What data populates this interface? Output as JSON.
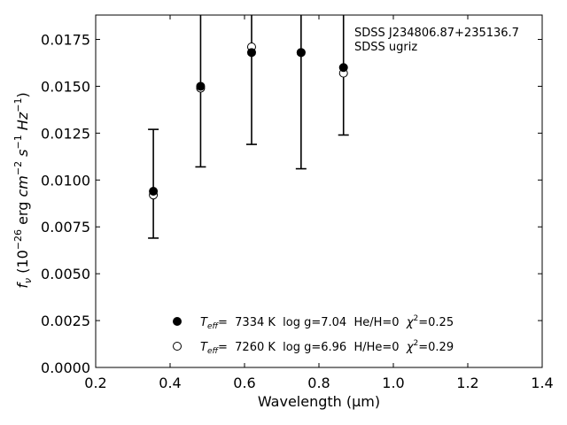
{
  "chart_data": {
    "type": "scatter",
    "xlabel": "Wavelength (μm)",
    "ylabel_parts": {
      "pre": "f",
      "sub": "ν",
      "mid": " (10",
      "exp1": "−26",
      "mid2": " erg ",
      "cm": "cm",
      "exp2": "−2",
      "s": " s",
      "exp3": "−1",
      "hz": " Hz",
      "exp4": "−1",
      "post": ")"
    },
    "xlim": [
      0.2,
      1.4
    ],
    "ylim": [
      0.0,
      0.0188
    ],
    "xticks": [
      0.2,
      0.4,
      0.6,
      0.8,
      1.0,
      1.2,
      1.4
    ],
    "xtick_labels": [
      "0.2",
      "0.4",
      "0.6",
      "0.8",
      "1.0",
      "1.2",
      "1.4"
    ],
    "yticks": [
      0.0,
      0.0025,
      0.005,
      0.0075,
      0.01,
      0.0125,
      0.015,
      0.0175
    ],
    "ytick_labels": [
      "0.0000",
      "0.0025",
      "0.0050",
      "0.0075",
      "0.0100",
      "0.0125",
      "0.0150",
      "0.0175"
    ],
    "annotation": [
      "SDSS J234806.87+235136.7",
      "SDSS ugriz"
    ],
    "observed": {
      "x": [
        0.355,
        0.482,
        0.619,
        0.752,
        0.866
      ],
      "y": [
        0.0094,
        0.015,
        0.0168,
        0.0168,
        0.016
      ],
      "yerr_low": [
        0.0069,
        0.0107,
        0.0119,
        0.0106,
        0.0124
      ],
      "yerr_high": [
        0.0127,
        0.0188,
        0.0188,
        0.0188,
        0.0188
      ],
      "cap_low": [
        true,
        true,
        true,
        true,
        true
      ],
      "cap_high": [
        true,
        false,
        false,
        false,
        false
      ]
    },
    "series": [
      {
        "marker": "filled-circle",
        "x": [
          0.355,
          0.482,
          0.619,
          0.752,
          0.866
        ],
        "y": [
          0.0094,
          0.015,
          0.0168,
          0.0168,
          0.016
        ],
        "legend": {
          "teff_value": "=  7334 K  log g=7.04  He/H=0  ",
          "chi_value": "=0.25"
        }
      },
      {
        "marker": "open-circle",
        "x": [
          0.355,
          0.482,
          0.619,
          0.752,
          0.866
        ],
        "y": [
          0.0092,
          0.0149,
          0.0171,
          0.0168,
          0.0157
        ],
        "legend": {
          "teff_value": "=  7260 K  log g=6.96  H/He=0  ",
          "chi_value": "=0.29"
        }
      }
    ],
    "legend_labels": {
      "teff": "T",
      "teff_sub": "eff",
      "chi": "χ",
      "chi_sup": "2"
    },
    "colors": {
      "marker": "#000000",
      "axes": "#000000",
      "background": "#ffffff"
    },
    "grid": false,
    "legend_position": "lower-center"
  }
}
